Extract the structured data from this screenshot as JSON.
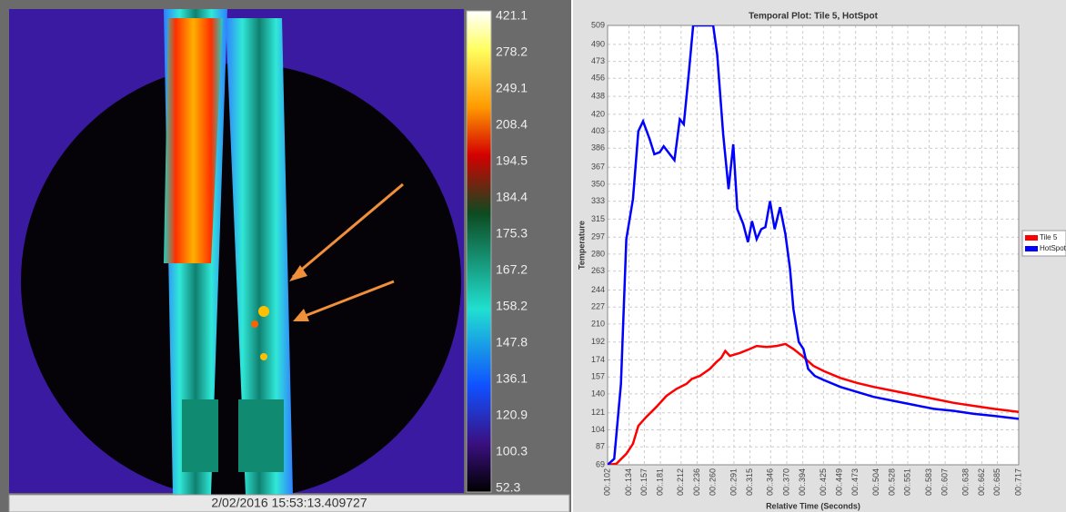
{
  "thermal_image": {
    "colorbar_labels": [
      "421.1",
      "278.2",
      "249.1",
      "208.4",
      "194.5",
      "184.4",
      "175.3",
      "167.2",
      "158.2",
      "147.8",
      "136.1",
      "120.9",
      "100.3",
      "52.3"
    ],
    "timestamp": "2/02/2016 15:53:13.409727"
  },
  "chart_data": {
    "type": "line",
    "title": "Temporal Plot: Tile 5, HotSpot",
    "x_label": "Relative Time (Seconds)",
    "y_label": "Temperature",
    "xlim": [
      0.102,
      0.717
    ],
    "ylim": [
      69,
      509
    ],
    "grid": true,
    "legend": "right",
    "xticks": [
      {
        "value": 0.102,
        "label": "00:.102"
      },
      {
        "value": 0.134,
        "label": "00:.134"
      },
      {
        "value": 0.157,
        "label": "00:.157"
      },
      {
        "value": 0.181,
        "label": "00:.181"
      },
      {
        "value": 0.212,
        "label": "00:.212"
      },
      {
        "value": 0.236,
        "label": "00:.236"
      },
      {
        "value": 0.26,
        "label": "00:.260"
      },
      {
        "value": 0.291,
        "label": "00:.291"
      },
      {
        "value": 0.315,
        "label": "00:.315"
      },
      {
        "value": 0.346,
        "label": "00:.346"
      },
      {
        "value": 0.37,
        "label": "00:.370"
      },
      {
        "value": 0.394,
        "label": "00:.394"
      },
      {
        "value": 0.425,
        "label": "00:.425"
      },
      {
        "value": 0.449,
        "label": "00:.449"
      },
      {
        "value": 0.473,
        "label": "00:.473"
      },
      {
        "value": 0.504,
        "label": "00:.504"
      },
      {
        "value": 0.528,
        "label": "00:.528"
      },
      {
        "value": 0.551,
        "label": "00:.551"
      },
      {
        "value": 0.583,
        "label": "00:.583"
      },
      {
        "value": 0.607,
        "label": "00:.607"
      },
      {
        "value": 0.638,
        "label": "00:.638"
      },
      {
        "value": 0.662,
        "label": "00:.662"
      },
      {
        "value": 0.685,
        "label": "00:.685"
      },
      {
        "value": 0.717,
        "label": "00:.717"
      }
    ],
    "yticks": [
      69,
      87,
      104,
      121,
      140,
      157,
      174,
      192,
      210,
      227,
      244,
      263,
      280,
      297,
      315,
      333,
      350,
      367,
      386,
      403,
      420,
      438,
      456,
      473,
      490,
      509
    ],
    "series": [
      {
        "name": "Tile 5",
        "color": "#ff0000",
        "x": [
          0.102,
          0.115,
          0.13,
          0.14,
          0.148,
          0.16,
          0.175,
          0.19,
          0.205,
          0.22,
          0.228,
          0.24,
          0.255,
          0.265,
          0.272,
          0.278,
          0.285,
          0.3,
          0.315,
          0.325,
          0.34,
          0.355,
          0.368,
          0.38,
          0.395,
          0.41,
          0.425,
          0.45,
          0.475,
          0.5,
          0.53,
          0.56,
          0.59,
          0.62,
          0.65,
          0.68,
          0.717
        ],
        "values": [
          69,
          70,
          80,
          90,
          108,
          117,
          127,
          138,
          145,
          150,
          155,
          158,
          165,
          172,
          176,
          183,
          178,
          181,
          185,
          188,
          187,
          188,
          190,
          185,
          177,
          168,
          163,
          156,
          151,
          147,
          143,
          139,
          135,
          131,
          128,
          125,
          122
        ]
      },
      {
        "name": "HotSpot",
        "color": "#0000ff",
        "x": [
          0.102,
          0.112,
          0.122,
          0.13,
          0.14,
          0.148,
          0.155,
          0.165,
          0.172,
          0.18,
          0.186,
          0.195,
          0.202,
          0.21,
          0.216,
          0.224,
          0.23,
          0.26,
          0.266,
          0.275,
          0.283,
          0.29,
          0.296,
          0.305,
          0.312,
          0.318,
          0.325,
          0.332,
          0.338,
          0.345,
          0.352,
          0.36,
          0.368,
          0.375,
          0.38,
          0.388,
          0.395,
          0.402,
          0.412,
          0.425,
          0.45,
          0.475,
          0.5,
          0.53,
          0.56,
          0.59,
          0.62,
          0.65,
          0.68,
          0.717
        ],
        "values": [
          69,
          75,
          150,
          295,
          335,
          403,
          413,
          395,
          380,
          382,
          388,
          380,
          374,
          415,
          410,
          465,
          509,
          509,
          480,
          400,
          345,
          390,
          325,
          310,
          292,
          313,
          295,
          305,
          307,
          333,
          305,
          327,
          300,
          265,
          225,
          192,
          185,
          165,
          158,
          154,
          147,
          142,
          137,
          133,
          129,
          125,
          123,
          120,
          118,
          115
        ]
      }
    ]
  }
}
